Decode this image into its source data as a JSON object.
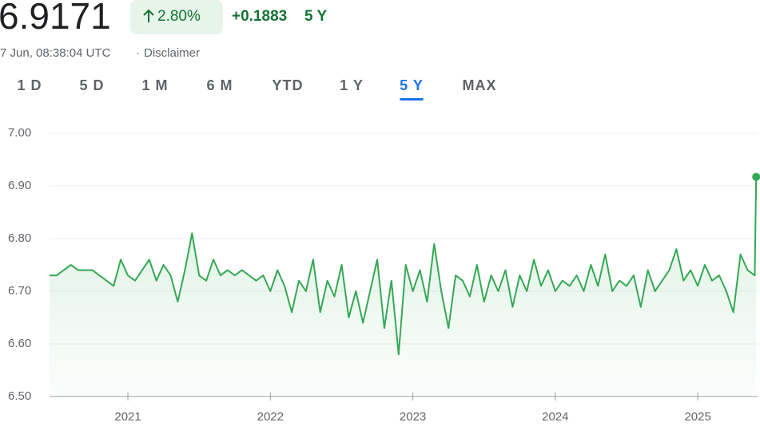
{
  "header": {
    "price": "6.9171",
    "change_pct": "2.80%",
    "change_abs": "+0.1883",
    "period": "5 Y",
    "timestamp": "7 Jun, 08:38:04 UTC",
    "separator": "·",
    "disclaimer": "Disclaimer"
  },
  "tabs": {
    "items": [
      "1 D",
      "5 D",
      "1 M",
      "6 M",
      "YTD",
      "1 Y",
      "5 Y",
      "MAX"
    ],
    "selected": 6
  },
  "chart_data": {
    "type": "line",
    "color": "#34a853",
    "grid": true,
    "xlim": [
      2020.45,
      2025.42
    ],
    "xticks": [
      2021,
      2022,
      2023,
      2024,
      2025
    ],
    "ylim": [
      6.5,
      7.0
    ],
    "yticks": [
      {
        "value": 6.5,
        "label": "6.50"
      },
      {
        "value": 6.6,
        "label": "6.60"
      },
      {
        "value": 6.7,
        "label": "6.70"
      },
      {
        "value": 6.8,
        "label": "6.80"
      },
      {
        "value": 6.9,
        "label": "6.90"
      },
      {
        "value": 7.0,
        "label": "7.00"
      }
    ],
    "x": [
      2020.45,
      2020.5,
      2020.55,
      2020.6,
      2020.65,
      2020.7,
      2020.75,
      2020.8,
      2020.85,
      2020.9,
      2020.95,
      2021.0,
      2021.05,
      2021.1,
      2021.15,
      2021.2,
      2021.25,
      2021.3,
      2021.35,
      2021.4,
      2021.45,
      2021.5,
      2021.55,
      2021.6,
      2021.65,
      2021.7,
      2021.75,
      2021.8,
      2021.85,
      2021.9,
      2021.95,
      2022.0,
      2022.05,
      2022.1,
      2022.15,
      2022.2,
      2022.25,
      2022.3,
      2022.35,
      2022.4,
      2022.45,
      2022.5,
      2022.55,
      2022.6,
      2022.65,
      2022.7,
      2022.75,
      2022.8,
      2022.85,
      2022.9,
      2022.95,
      2023.0,
      2023.05,
      2023.1,
      2023.15,
      2023.2,
      2023.25,
      2023.3,
      2023.35,
      2023.4,
      2023.45,
      2023.5,
      2023.55,
      2023.6,
      2023.65,
      2023.7,
      2023.75,
      2023.8,
      2023.85,
      2023.9,
      2023.95,
      2024.0,
      2024.05,
      2024.1,
      2024.15,
      2024.2,
      2024.25,
      2024.3,
      2024.35,
      2024.4,
      2024.45,
      2024.5,
      2024.55,
      2024.6,
      2024.65,
      2024.7,
      2024.75,
      2024.8,
      2024.85,
      2024.9,
      2024.95,
      2025.0,
      2025.05,
      2025.1,
      2025.15,
      2025.2,
      2025.25,
      2025.3,
      2025.35,
      2025.4,
      2025.41
    ],
    "values": [
      6.73,
      6.73,
      6.74,
      6.75,
      6.74,
      6.74,
      6.74,
      6.73,
      6.72,
      6.71,
      6.76,
      6.73,
      6.72,
      6.74,
      6.76,
      6.72,
      6.75,
      6.73,
      6.68,
      6.74,
      6.81,
      6.73,
      6.72,
      6.76,
      6.73,
      6.74,
      6.73,
      6.74,
      6.73,
      6.72,
      6.73,
      6.7,
      6.74,
      6.71,
      6.66,
      6.72,
      6.7,
      6.76,
      6.66,
      6.72,
      6.69,
      6.75,
      6.65,
      6.7,
      6.64,
      6.7,
      6.76,
      6.63,
      6.72,
      6.58,
      6.75,
      6.7,
      6.74,
      6.68,
      6.79,
      6.7,
      6.63,
      6.73,
      6.72,
      6.69,
      6.75,
      6.68,
      6.73,
      6.7,
      6.74,
      6.67,
      6.73,
      6.7,
      6.76,
      6.71,
      6.74,
      6.7,
      6.72,
      6.71,
      6.73,
      6.7,
      6.75,
      6.71,
      6.77,
      6.7,
      6.72,
      6.71,
      6.73,
      6.67,
      6.74,
      6.7,
      6.72,
      6.74,
      6.78,
      6.72,
      6.74,
      6.71,
      6.75,
      6.72,
      6.73,
      6.7,
      6.66,
      6.77,
      6.74,
      6.73,
      6.9171
    ]
  }
}
